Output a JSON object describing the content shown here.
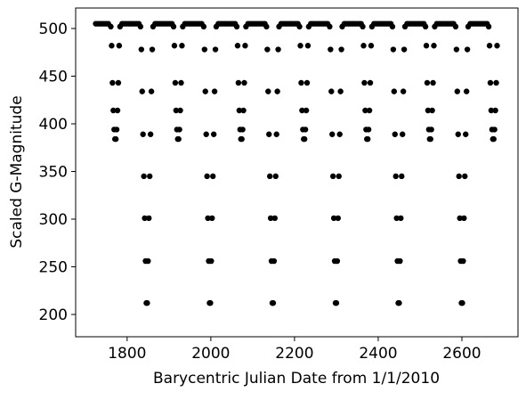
{
  "chart_data": {
    "type": "scatter",
    "x_label": "Barycentric Julian Date from 1/1/2010",
    "y_label": "Scaled G-Magnitude",
    "xlim": [
      1677,
      2734
    ],
    "ylim": [
      176.6,
      521.5
    ],
    "xticks": [
      1800,
      2000,
      2200,
      2400,
      2600
    ],
    "yticks": [
      200,
      250,
      300,
      350,
      400,
      450,
      500
    ],
    "series": [
      {
        "color": "#000000",
        "x": [
          1725,
          1730,
          1735,
          1740,
          1745,
          1750,
          1755,
          1761,
          1763,
          1765,
          1767,
          1769,
          1771,
          1773,
          1775,
          1777,
          1779,
          1781,
          1783,
          1788,
          1793,
          1798,
          1803,
          1808,
          1813,
          1818,
          1823,
          1828,
          1832,
          1834,
          1836,
          1838,
          1840,
          1842,
          1844,
          1846,
          1848,
          1850,
          1852,
          1854,
          1856,
          1858,
          1860,
          1862,
          1867,
          1872,
          1877,
          1882,
          1887,
          1892,
          1897,
          1902,
          1907,
          1911,
          1913,
          1915,
          1917,
          1919,
          1921,
          1923,
          1925,
          1927,
          1929,
          1931,
          1933,
          1938,
          1943,
          1948,
          1953,
          1958,
          1963,
          1968,
          1973,
          1978,
          1983,
          1985,
          1987,
          1989,
          1991,
          1993,
          1995,
          1997,
          1999,
          2001,
          2003,
          2005,
          2007,
          2009,
          2011,
          2013,
          2018,
          2023,
          2028,
          2033,
          2038,
          2043,
          2048,
          2053,
          2058,
          2062,
          2064,
          2066,
          2068,
          2070,
          2072,
          2074,
          2076,
          2078,
          2080,
          2082,
          2084,
          2089,
          2094,
          2099,
          2104,
          2109,
          2114,
          2119,
          2124,
          2129,
          2133,
          2135,
          2137,
          2139,
          2141,
          2143,
          2145,
          2147,
          2149,
          2151,
          2153,
          2155,
          2157,
          2159,
          2161,
          2163,
          2168,
          2173,
          2178,
          2183,
          2188,
          2193,
          2198,
          2203,
          2208,
          2212,
          2214,
          2216,
          2218,
          2220,
          2222,
          2224,
          2226,
          2228,
          2230,
          2232,
          2234,
          2239,
          2244,
          2249,
          2254,
          2259,
          2264,
          2269,
          2274,
          2279,
          2284,
          2286,
          2288,
          2290,
          2292,
          2294,
          2296,
          2298,
          2300,
          2302,
          2304,
          2306,
          2308,
          2310,
          2312,
          2314,
          2319,
          2324,
          2329,
          2334,
          2339,
          2344,
          2349,
          2354,
          2359,
          2363,
          2365,
          2367,
          2369,
          2371,
          2373,
          2375,
          2377,
          2379,
          2381,
          2383,
          2385,
          2390,
          2395,
          2400,
          2405,
          2410,
          2415,
          2420,
          2425,
          2430,
          2434,
          2436,
          2438,
          2440,
          2442,
          2444,
          2446,
          2448,
          2450,
          2452,
          2454,
          2456,
          2458,
          2460,
          2462,
          2464,
          2469,
          2474,
          2479,
          2484,
          2489,
          2494,
          2499,
          2504,
          2509,
          2513,
          2515,
          2517,
          2519,
          2521,
          2523,
          2525,
          2527,
          2529,
          2531,
          2533,
          2535,
          2540,
          2545,
          2550,
          2555,
          2560,
          2565,
          2570,
          2575,
          2580,
          2585,
          2587,
          2589,
          2591,
          2593,
          2595,
          2597,
          2599,
          2601,
          2603,
          2605,
          2607,
          2609,
          2611,
          2613,
          2615,
          2620,
          2625,
          2630,
          2635,
          2640,
          2645,
          2650,
          2655,
          2660,
          2664,
          2666,
          2668,
          2670,
          2672,
          2674,
          2676,
          2678,
          2680,
          2682,
          2684
        ],
        "y": [
          505,
          505,
          505,
          505,
          505,
          505,
          505,
          502,
          482,
          443,
          414,
          394,
          384,
          384,
          394,
          414,
          443,
          482,
          502,
          505,
          505,
          505,
          505,
          505,
          505,
          505,
          505,
          505,
          502,
          478,
          434,
          389,
          345,
          301,
          256,
          212,
          212,
          256,
          301,
          345,
          389,
          434,
          478,
          502,
          505,
          505,
          505,
          505,
          505,
          505,
          505,
          505,
          505,
          502,
          482,
          443,
          414,
          394,
          384,
          384,
          394,
          414,
          443,
          482,
          502,
          505,
          505,
          505,
          505,
          505,
          505,
          505,
          505,
          505,
          502,
          478,
          434,
          389,
          345,
          301,
          256,
          212,
          212,
          256,
          301,
          345,
          389,
          434,
          478,
          502,
          505,
          505,
          505,
          505,
          505,
          505,
          505,
          505,
          505,
          502,
          482,
          443,
          414,
          394,
          384,
          384,
          394,
          414,
          443,
          482,
          502,
          505,
          505,
          505,
          505,
          505,
          505,
          505,
          505,
          505,
          502,
          478,
          434,
          389,
          345,
          301,
          256,
          212,
          212,
          256,
          301,
          345,
          389,
          434,
          478,
          502,
          505,
          505,
          505,
          505,
          505,
          505,
          505,
          505,
          505,
          502,
          482,
          443,
          414,
          394,
          384,
          384,
          394,
          414,
          443,
          482,
          502,
          505,
          505,
          505,
          505,
          505,
          505,
          505,
          505,
          505,
          502,
          478,
          434,
          389,
          345,
          301,
          256,
          212,
          212,
          256,
          301,
          345,
          389,
          434,
          478,
          502,
          505,
          505,
          505,
          505,
          505,
          505,
          505,
          505,
          505,
          502,
          482,
          443,
          414,
          394,
          384,
          384,
          394,
          414,
          443,
          482,
          502,
          505,
          505,
          505,
          505,
          505,
          505,
          505,
          505,
          505,
          502,
          478,
          434,
          389,
          345,
          301,
          256,
          212,
          212,
          256,
          301,
          345,
          389,
          434,
          478,
          502,
          505,
          505,
          505,
          505,
          505,
          505,
          505,
          505,
          505,
          502,
          482,
          443,
          414,
          394,
          384,
          384,
          394,
          414,
          443,
          482,
          502,
          505,
          505,
          505,
          505,
          505,
          505,
          505,
          505,
          505,
          502,
          478,
          434,
          389,
          345,
          301,
          256,
          212,
          212,
          256,
          301,
          345,
          389,
          434,
          478,
          502,
          505,
          505,
          505,
          505,
          505,
          505,
          505,
          505,
          505,
          502,
          482,
          443,
          414,
          394,
          384,
          384,
          394,
          414,
          443,
          482
        ]
      }
    ]
  }
}
